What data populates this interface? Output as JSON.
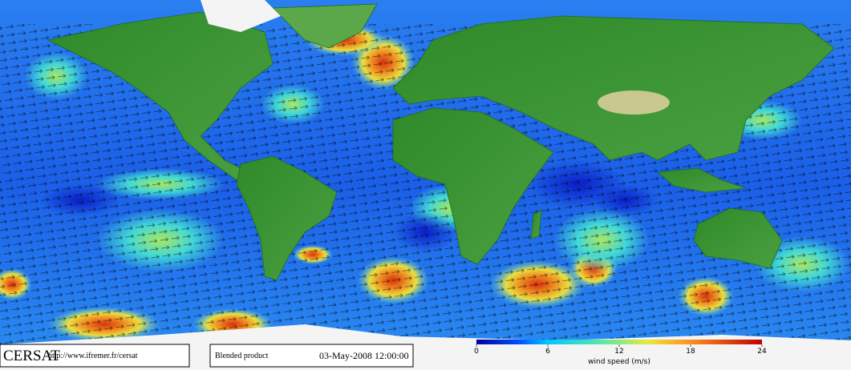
{
  "footer": {
    "logo": "CERSAT",
    "url": "http://www.ifremer.fr/cersat",
    "product": "Blended product",
    "date": "03-May-2008 12:00:00"
  },
  "colorbar": {
    "label": "wind speed (m/s)",
    "lim": [
      0,
      24
    ],
    "ticks": [
      0,
      6,
      12,
      18,
      24
    ]
  }
}
